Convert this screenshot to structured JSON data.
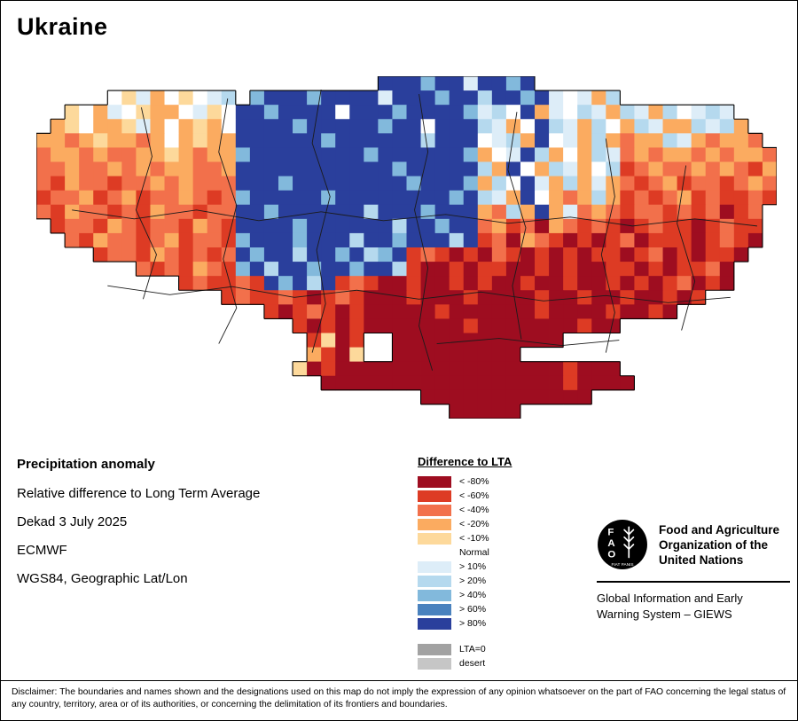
{
  "title": "Ukraine",
  "map": {
    "cell_size": 16,
    "palette": {
      "A": "#9e0d20",
      "B": "#dd3b24",
      "C": "#f2704b",
      "D": "#fbab60",
      "E": "#fdd99b",
      "N": "#ffffff",
      "F": "#ddedf8",
      "G": "#b5d9ee",
      "H": "#82b9dc",
      "I": "#4a82be",
      "J": "#2a3f9c",
      "Z": "#a2a2a2",
      "Y": "#c6c6c6"
    },
    "rows": [
      "........................JJJHJJFJJHJ.................",
      ".....NEFDNENFG.HJJJHJJJJFJJJHJJGJJHJFNFDG...........",
      "..ENDFNEDDNFENJJHJJJJNJJJHJJJJHFGNJDFNGFDGFDGNFGF...",
      ".DENDDEFDNDEDNJJJJHJJJJJHJJNJJJGFDNJGFDGNDGFDDGFGD..",
      "DDCDEDDCDNDEDDJJJJJJHJJJJJJGJJJNFGDJNFDGDCDDGFDCDDC.",
      "CDDCDCCDDEDCDDHJJJJJJJJHJJJJJJHDNFJGDNDGFCDCDDCDCDDC",
      "CCDCCDCDCDDCCDJJJJJJJJJJJHJJJJJGDJNDGFDNGBCDCCDCDCBD",
      "CBDCCBCCDCDCCCJJJHJJJJJJJJHJJJHDGNJFDGDFDCBCDBCCBCDC",
      "BCCDBCDBCCDCBCHJJJJJHJJJJJJJJHJGFDJNDCDGDBCBCDBCBBCB",
      "CBDCCBCBDCCBCCJJHJJJJJJGJJJHJJJDCGDJDFCDCBCCBCBCABC.",
      ".BCCBDCBCCBDCBJJJJHJJJJJJGJJHJJCDBCADCBCBABCBBABCBB.",
      "..CBDCCBCDBCCBHJJJHJJJGJJHJJJGJBCADCBABABCABBBABCBA.",
      "....BCCBDCBCBCJHJJGJJHJGHJBCBABACBABABABBABCABABBA..",
      ".......CBCBDCBHJGJJHJJHJJGBAABABBAABABAABBABABBCA...",
      "..........BCBBCBJHJGJBCBAABAABABAABAABAABABABCABA...",
      ".............BCBBCBABCBAAABAAABAAAABAABAABAABAB.....",
      "................BABCBABAAAAABAAAAAABAAAABAABA.......",
      "..................BABABAAAAAAABAAAAAAABAA...........",
      "...................BEAB..AAAAAAAAAAAA...............",
      "...................DBAE..AAAAAAAAA..................",
      "..................EABAAAAAAAAAAAAAAAABAAA...........",
      "....................AAAAAAAAAAAAAAAAABAAAA..........",
      "...........................AAAAAAAAAAAA.............",
      ".............................AAAAA.................."
    ],
    "boundaries": [
      [
        [
          118,
          35
        ],
        [
          130,
          90
        ],
        [
          112,
          150
        ],
        [
          135,
          200
        ],
        [
          120,
          250
        ]
      ],
      [
        [
          215,
          25
        ],
        [
          205,
          85
        ],
        [
          225,
          145
        ],
        [
          210,
          205
        ],
        [
          225,
          260
        ],
        [
          205,
          300
        ]
      ],
      [
        [
          320,
          15
        ],
        [
          310,
          75
        ],
        [
          330,
          135
        ],
        [
          315,
          195
        ],
        [
          325,
          255
        ],
        [
          310,
          310
        ]
      ],
      [
        [
          430,
          20
        ],
        [
          440,
          85
        ],
        [
          425,
          150
        ],
        [
          440,
          215
        ],
        [
          430,
          280
        ],
        [
          445,
          330
        ]
      ],
      [
        [
          540,
          40
        ],
        [
          530,
          105
        ],
        [
          550,
          170
        ],
        [
          535,
          235
        ],
        [
          545,
          295
        ]
      ],
      [
        [
          640,
          70
        ],
        [
          650,
          135
        ],
        [
          635,
          200
        ],
        [
          650,
          265
        ],
        [
          640,
          310
        ]
      ],
      [
        [
          730,
          100
        ],
        [
          720,
          165
        ],
        [
          740,
          230
        ],
        [
          725,
          285
        ]
      ],
      [
        [
          40,
          150
        ],
        [
          110,
          160
        ],
        [
          180,
          150
        ],
        [
          250,
          162
        ],
        [
          320,
          152
        ]
      ],
      [
        [
          320,
          152
        ],
        [
          390,
          162
        ],
        [
          460,
          155
        ],
        [
          530,
          165
        ],
        [
          600,
          158
        ],
        [
          670,
          168
        ],
        [
          740,
          160
        ],
        [
          810,
          168
        ]
      ],
      [
        [
          80,
          235
        ],
        [
          150,
          245
        ],
        [
          220,
          236
        ],
        [
          290,
          248
        ],
        [
          360,
          240
        ]
      ],
      [
        [
          360,
          240
        ],
        [
          430,
          250
        ],
        [
          500,
          242
        ],
        [
          570,
          252
        ],
        [
          640,
          246
        ],
        [
          710,
          254
        ],
        [
          780,
          248
        ]
      ],
      [
        [
          450,
          300
        ],
        [
          520,
          294
        ],
        [
          590,
          302
        ],
        [
          655,
          296
        ]
      ]
    ]
  },
  "info": {
    "heading": "Precipitation anomaly",
    "line1": "Relative difference to Long Term Average",
    "line2": "Dekad 3 July 2025",
    "line3": "ECMWF",
    "line4": "WGS84, Geographic Lat/Lon"
  },
  "legend": {
    "title": "Difference to LTA",
    "items": [
      {
        "label": "< -80%",
        "key": "A"
      },
      {
        "label": "< -60%",
        "key": "B"
      },
      {
        "label": "< -40%",
        "key": "C"
      },
      {
        "label": "< -20%",
        "key": "D"
      },
      {
        "label": "< -10%",
        "key": "E"
      },
      {
        "label": "Normal",
        "key": "N"
      },
      {
        "label": "> 10%",
        "key": "F"
      },
      {
        "label": "> 20%",
        "key": "G"
      },
      {
        "label": "> 40%",
        "key": "H"
      },
      {
        "label": "> 60%",
        "key": "I"
      },
      {
        "label": "> 80%",
        "key": "J"
      }
    ],
    "extra_items": [
      {
        "label": "LTA=0",
        "key": "Z"
      },
      {
        "label": "desert",
        "key": "Y"
      }
    ]
  },
  "org": {
    "logo_text": "FAO",
    "logo_subtext": "FIAT PANIS",
    "name_lines": [
      "Food and Agriculture",
      "Organization of the",
      "United Nations"
    ],
    "giews_lines": [
      "Global Information and Early",
      "Warning System – GIEWS"
    ]
  },
  "disclaimer": "Disclaimer: The boundaries and names shown and the designations used on this map do not imply the expression of any opinion whatsoever on the part of FAO concerning the legal status of any country, territory, area or of its authorities, or concerning the delimitation of its frontiers and boundaries."
}
